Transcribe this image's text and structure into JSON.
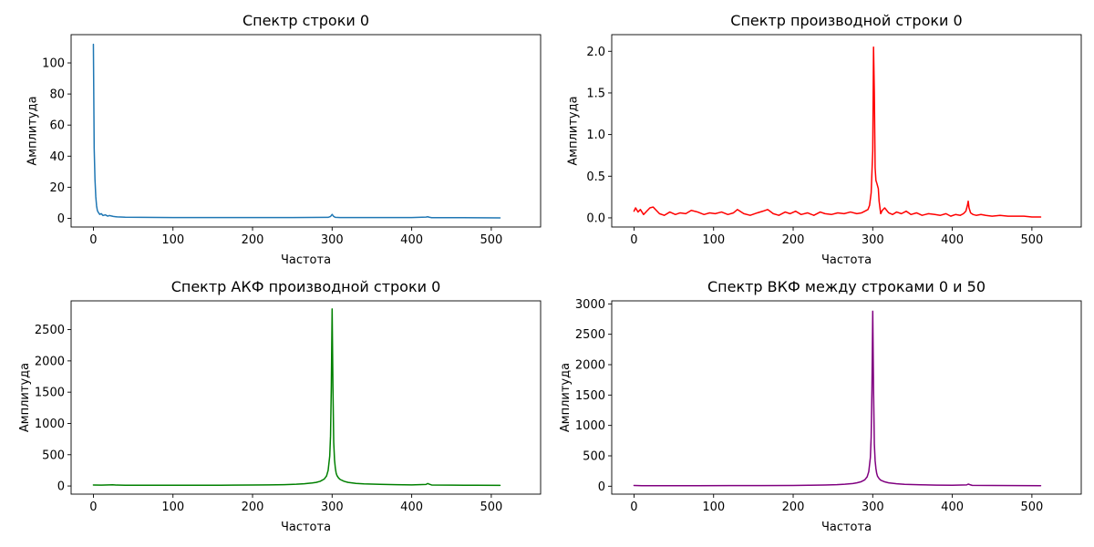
{
  "chart_data": [
    {
      "type": "line",
      "title": "Спектр строки 0",
      "xlabel": "Частота",
      "ylabel": "Амплитуда",
      "xlim": [
        -28,
        562
      ],
      "ylim": [
        -5.6,
        118.2
      ],
      "xticks": [
        0,
        100,
        200,
        300,
        400,
        500
      ],
      "xtick_labels": [
        "0",
        "100",
        "200",
        "300",
        "400",
        "500"
      ],
      "yticks": [
        0,
        20,
        40,
        60,
        80,
        100
      ],
      "ytick_labels": [
        "0",
        "20",
        "40",
        "60",
        "80",
        "100"
      ],
      "series": [
        {
          "color": "#1f77b4",
          "x": [
            0,
            1,
            2,
            3,
            4,
            5,
            6,
            8,
            10,
            12,
            15,
            18,
            20,
            25,
            30,
            40,
            60,
            100,
            150,
            200,
            250,
            295,
            298,
            300,
            302,
            304,
            310,
            350,
            400,
            418,
            420,
            422,
            425,
            460,
            511
          ],
          "y": [
            112,
            45,
            25,
            14,
            8,
            5,
            4,
            2.5,
            3,
            1.8,
            2.2,
            1.4,
            1.8,
            1.2,
            0.9,
            0.7,
            0.6,
            0.5,
            0.5,
            0.5,
            0.5,
            0.6,
            1.2,
            2.5,
            1.2,
            0.6,
            0.5,
            0.5,
            0.5,
            0.8,
            1.0,
            0.7,
            0.4,
            0.4,
            0.3
          ]
        }
      ]
    },
    {
      "type": "line",
      "title": "Спектр производной строки 0",
      "xlabel": "Частота",
      "ylabel": "Амплитуда",
      "xlim": [
        -28,
        562
      ],
      "ylim": [
        -0.11,
        2.2
      ],
      "xticks": [
        0,
        100,
        200,
        300,
        400,
        500
      ],
      "xtick_labels": [
        "0",
        "100",
        "200",
        "300",
        "400",
        "500"
      ],
      "yticks": [
        0,
        0.5,
        1.0,
        1.5,
        2.0
      ],
      "ytick_labels": [
        "0.0",
        "0.5",
        "1.0",
        "1.5",
        "2.0"
      ],
      "series": [
        {
          "color": "#ff0000",
          "x": [
            0,
            2,
            5,
            8,
            12,
            16,
            20,
            24,
            28,
            32,
            38,
            45,
            52,
            58,
            65,
            72,
            80,
            88,
            95,
            102,
            110,
            118,
            125,
            130,
            138,
            146,
            155,
            162,
            168,
            175,
            182,
            190,
            196,
            203,
            210,
            218,
            226,
            234,
            240,
            248,
            256,
            264,
            272,
            280,
            286,
            290,
            294,
            296,
            298,
            300,
            301,
            302,
            303,
            304,
            305,
            307,
            308,
            310,
            312,
            315,
            320,
            325,
            330,
            336,
            342,
            348,
            355,
            362,
            370,
            378,
            385,
            392,
            398,
            404,
            410,
            414,
            417,
            419,
            420,
            421,
            423,
            426,
            430,
            436,
            442,
            450,
            460,
            470,
            480,
            490,
            500,
            511
          ],
          "y": [
            0.08,
            0.12,
            0.07,
            0.1,
            0.04,
            0.08,
            0.12,
            0.13,
            0.09,
            0.05,
            0.03,
            0.07,
            0.04,
            0.06,
            0.05,
            0.09,
            0.07,
            0.04,
            0.06,
            0.05,
            0.07,
            0.04,
            0.06,
            0.1,
            0.05,
            0.03,
            0.06,
            0.08,
            0.1,
            0.05,
            0.03,
            0.07,
            0.05,
            0.08,
            0.04,
            0.06,
            0.03,
            0.07,
            0.05,
            0.04,
            0.06,
            0.05,
            0.07,
            0.05,
            0.06,
            0.08,
            0.1,
            0.15,
            0.3,
            0.8,
            2.05,
            1.5,
            0.6,
            0.45,
            0.42,
            0.35,
            0.2,
            0.05,
            0.09,
            0.12,
            0.06,
            0.04,
            0.07,
            0.05,
            0.08,
            0.04,
            0.06,
            0.03,
            0.05,
            0.04,
            0.03,
            0.05,
            0.02,
            0.04,
            0.03,
            0.05,
            0.08,
            0.15,
            0.2,
            0.12,
            0.06,
            0.04,
            0.03,
            0.04,
            0.03,
            0.02,
            0.03,
            0.02,
            0.02,
            0.02,
            0.01,
            0.01
          ]
        }
      ]
    },
    {
      "type": "line",
      "title": "Спектр АКФ производной строки 0",
      "xlabel": "Частота",
      "ylabel": "Амплитуда",
      "xlim": [
        -28,
        562
      ],
      "ylim": [
        -130,
        2960
      ],
      "xticks": [
        0,
        100,
        200,
        300,
        400,
        500
      ],
      "xtick_labels": [
        "0",
        "100",
        "200",
        "300",
        "400",
        "500"
      ],
      "yticks": [
        0,
        500,
        1000,
        1500,
        2000,
        2500
      ],
      "ytick_labels": [
        "0",
        "500",
        "1000",
        "1500",
        "2000",
        "2500"
      ],
      "series": [
        {
          "color": "#008000",
          "x": [
            0,
            10,
            20,
            24,
            28,
            40,
            80,
            120,
            160,
            200,
            220,
            240,
            255,
            265,
            275,
            280,
            285,
            290,
            293,
            295,
            297,
            298,
            299,
            300,
            301,
            302,
            303,
            304,
            305,
            306,
            308,
            310,
            315,
            320,
            330,
            340,
            360,
            380,
            400,
            418,
            420,
            422,
            425,
            450,
            480,
            511
          ],
          "y": [
            15,
            14,
            18,
            20,
            15,
            13,
            12,
            12,
            13,
            15,
            18,
            22,
            28,
            35,
            48,
            58,
            75,
            110,
            160,
            250,
            480,
            800,
            1600,
            2830,
            1600,
            700,
            420,
            290,
            210,
            170,
            130,
            105,
            75,
            58,
            42,
            34,
            26,
            21,
            18,
            25,
            40,
            30,
            16,
            14,
            12,
            11
          ]
        }
      ]
    },
    {
      "type": "line",
      "title": "Спектр ВКФ между строками 0 и 50",
      "xlabel": "Частота",
      "ylabel": "Амплитуда",
      "xlim": [
        -28,
        562
      ],
      "ylim": [
        -130,
        3050
      ],
      "xticks": [
        0,
        100,
        200,
        300,
        400,
        500
      ],
      "xtick_labels": [
        "0",
        "100",
        "200",
        "300",
        "400",
        "500"
      ],
      "yticks": [
        0,
        500,
        1000,
        1500,
        2000,
        2500,
        3000
      ],
      "ytick_labels": [
        "0",
        "500",
        "1000",
        "1500",
        "2000",
        "2500",
        "3000"
      ],
      "series": [
        {
          "color": "#800080",
          "x": [
            0,
            10,
            20,
            40,
            80,
            120,
            160,
            200,
            220,
            240,
            255,
            265,
            275,
            280,
            285,
            290,
            293,
            295,
            297,
            298,
            299,
            300,
            301,
            302,
            303,
            304,
            305,
            306,
            308,
            310,
            315,
            320,
            330,
            340,
            360,
            380,
            400,
            418,
            420,
            422,
            425,
            450,
            480,
            511
          ],
          "y": [
            12,
            9,
            8,
            8,
            9,
            10,
            11,
            13,
            16,
            20,
            26,
            33,
            45,
            56,
            72,
            105,
            155,
            240,
            470,
            800,
            1600,
            2880,
            1600,
            700,
            420,
            290,
            210,
            165,
            125,
            100,
            72,
            56,
            40,
            32,
            24,
            19,
            16,
            22,
            35,
            26,
            14,
            12,
            10,
            9
          ]
        }
      ]
    }
  ]
}
